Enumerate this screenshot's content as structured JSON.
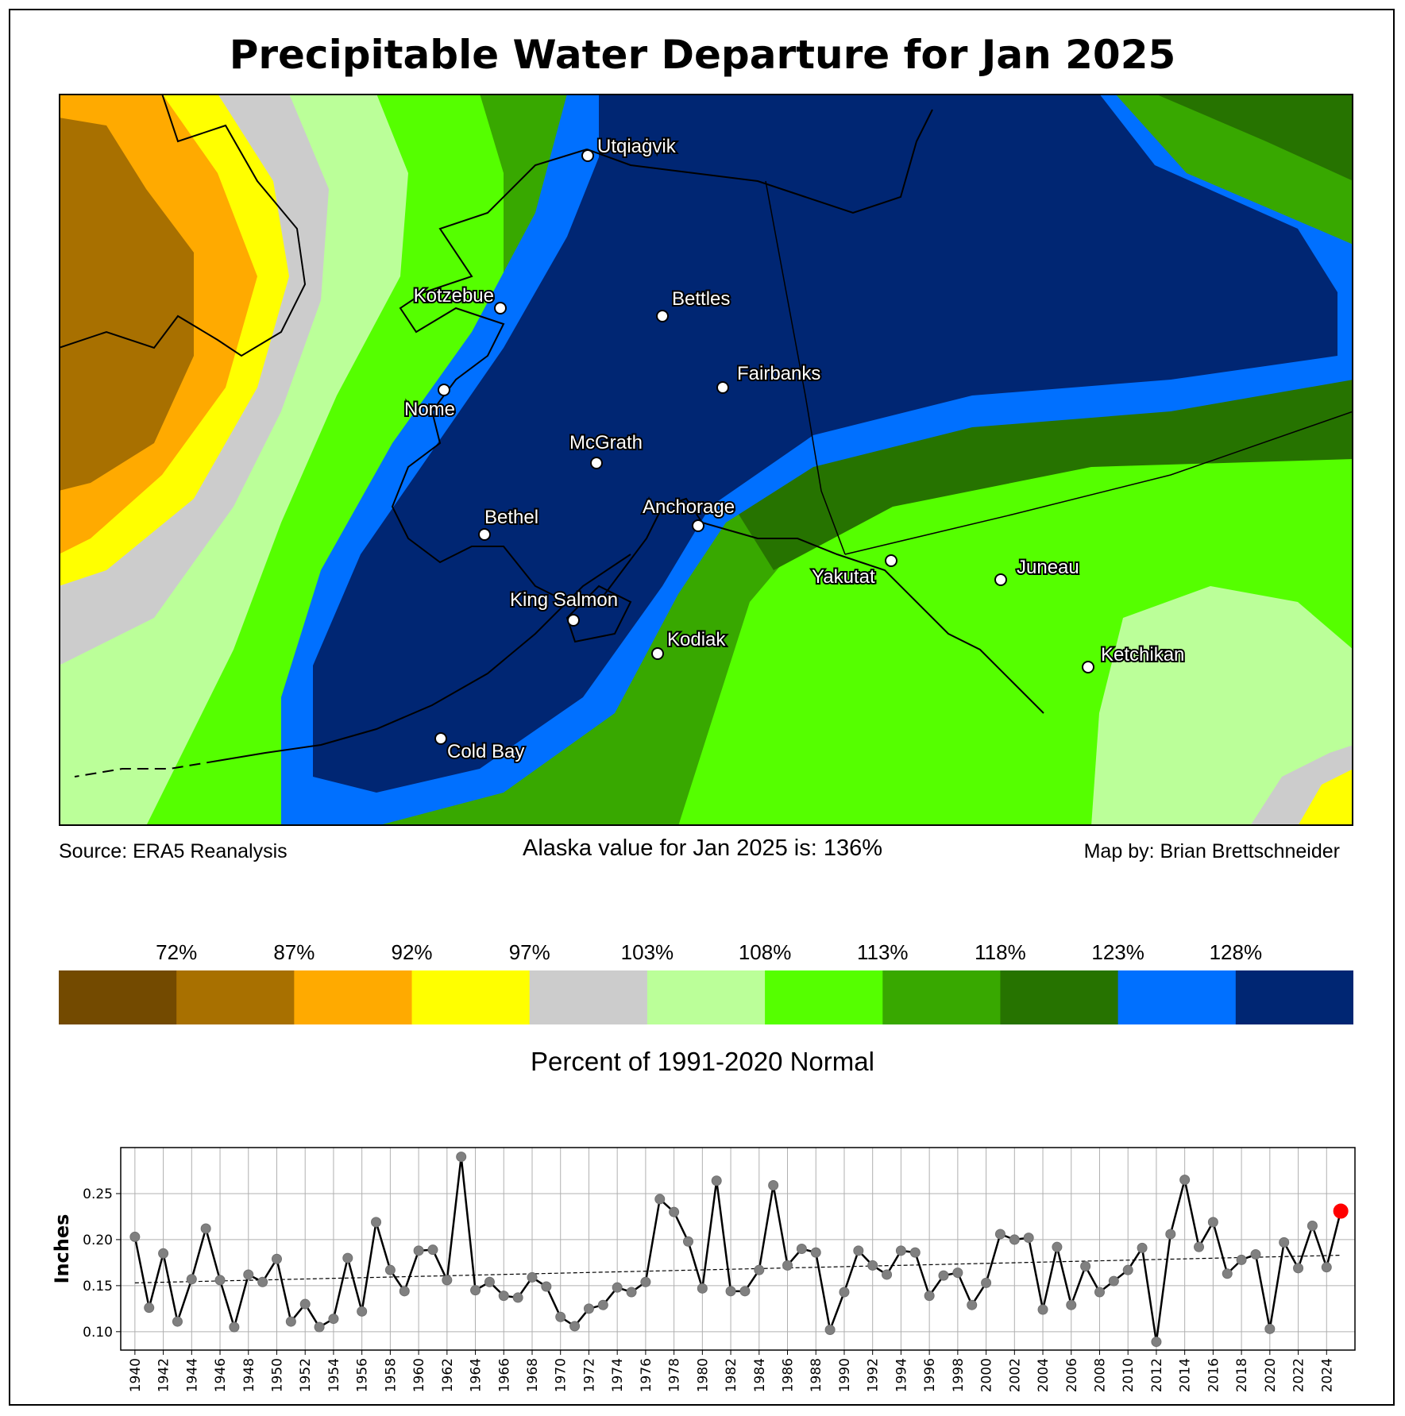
{
  "title": "Precipitable Water Departure for Jan 2025",
  "map": {
    "source": "Source: ERA5 Reanalysis",
    "state_value": "Alaska value for Jan 2025 is: 136%",
    "credit": "Map by: Brian Brettschneider",
    "cities": [
      "Utqiaġvik",
      "Kotzebue",
      "Bettles",
      "Fairbanks",
      "Nome",
      "McGrath",
      "Bethel",
      "Anchorage",
      "Yakutat",
      "Juneau",
      "King Salmon",
      "Kodiak",
      "Ketchikan",
      "Cold Bay"
    ]
  },
  "legend": {
    "title": "Percent of 1991-2020 Normal",
    "ticks": [
      "72%",
      "87%",
      "92%",
      "97%",
      "103%",
      "108%",
      "113%",
      "118%",
      "123%",
      "128%"
    ],
    "colors": [
      "#734a00",
      "#a87000",
      "#ffaa00",
      "#ffff00",
      "#cccccc",
      "#bbff99",
      "#55ff00",
      "#38a800",
      "#267300",
      "#0070ff",
      "#002673"
    ]
  },
  "chart_data": {
    "type": "line",
    "ylabel": "Inches",
    "xlabel": "",
    "xlim": [
      1939,
      2026
    ],
    "ylim": [
      0.08,
      0.3
    ],
    "yticks": [
      "0.10",
      "0.15",
      "0.20",
      "0.25"
    ],
    "xticks": [
      "1940",
      "1942",
      "1944",
      "1946",
      "1948",
      "1950",
      "1952",
      "1954",
      "1956",
      "1958",
      "1960",
      "1962",
      "1964",
      "1966",
      "1968",
      "1970",
      "1972",
      "1974",
      "1976",
      "1978",
      "1980",
      "1982",
      "1984",
      "1986",
      "1988",
      "1990",
      "1992",
      "1994",
      "1996",
      "1998",
      "2000",
      "2002",
      "2004",
      "2006",
      "2008",
      "2010",
      "2012",
      "2014",
      "2016",
      "2018",
      "2020",
      "2022",
      "2024"
    ],
    "x": [
      1940,
      1941,
      1942,
      1943,
      1944,
      1945,
      1946,
      1947,
      1948,
      1949,
      1950,
      1951,
      1952,
      1953,
      1954,
      1955,
      1956,
      1957,
      1958,
      1959,
      1960,
      1961,
      1962,
      1963,
      1964,
      1965,
      1966,
      1967,
      1968,
      1969,
      1970,
      1971,
      1972,
      1973,
      1974,
      1975,
      1976,
      1977,
      1978,
      1979,
      1980,
      1981,
      1982,
      1983,
      1984,
      1985,
      1986,
      1987,
      1988,
      1989,
      1990,
      1991,
      1992,
      1993,
      1994,
      1995,
      1996,
      1997,
      1998,
      1999,
      2000,
      2001,
      2002,
      2003,
      2004,
      2005,
      2006,
      2007,
      2008,
      2009,
      2010,
      2011,
      2012,
      2013,
      2014,
      2015,
      2016,
      2017,
      2018,
      2019,
      2020,
      2021,
      2022,
      2023,
      2024,
      2025
    ],
    "values": [
      0.203,
      0.126,
      0.185,
      0.111,
      0.157,
      0.212,
      0.156,
      0.105,
      0.162,
      0.154,
      0.179,
      0.111,
      0.13,
      0.105,
      0.114,
      0.18,
      0.122,
      0.219,
      0.167,
      0.144,
      0.188,
      0.189,
      0.156,
      0.29,
      0.145,
      0.154,
      0.139,
      0.137,
      0.159,
      0.149,
      0.116,
      0.106,
      0.125,
      0.129,
      0.148,
      0.143,
      0.154,
      0.244,
      0.23,
      0.198,
      0.147,
      0.264,
      0.144,
      0.144,
      0.167,
      0.259,
      0.172,
      0.19,
      0.186,
      0.102,
      0.143,
      0.188,
      0.172,
      0.162,
      0.188,
      0.186,
      0.139,
      0.161,
      0.164,
      0.129,
      0.153,
      0.206,
      0.2,
      0.202,
      0.124,
      0.192,
      0.129,
      0.171,
      0.143,
      0.155,
      0.167,
      0.191,
      0.089,
      0.206,
      0.265,
      0.192,
      0.219,
      0.163,
      0.178,
      0.184,
      0.103,
      0.197,
      0.169,
      0.215,
      0.17,
      0.231
    ],
    "highlight": {
      "x": 2025,
      "value": 0.231,
      "color": "#ff0000"
    },
    "trend": {
      "start_value": 0.153,
      "end_value": 0.183
    }
  }
}
